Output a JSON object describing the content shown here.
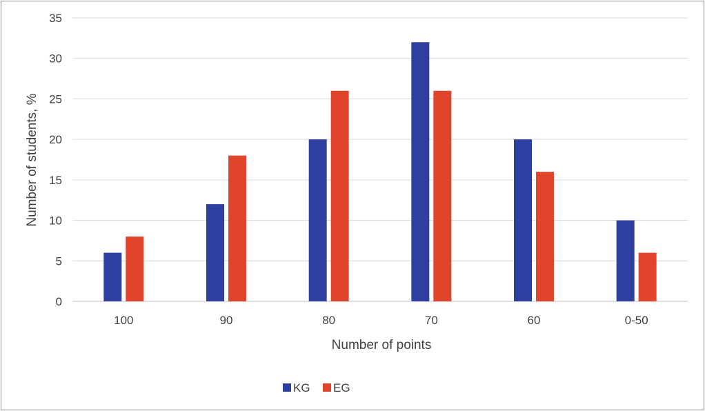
{
  "chart_data": {
    "type": "bar",
    "title": "",
    "xlabel": "Number of points",
    "ylabel": "Number of students, %",
    "categories": [
      "100",
      "90",
      "80",
      "70",
      "60",
      "0-50"
    ],
    "series": [
      {
        "name": "KG",
        "color": "#2e3fa0",
        "values": [
          6,
          12,
          20,
          32,
          20,
          10
        ]
      },
      {
        "name": "EG",
        "color": "#e0452c",
        "values": [
          8,
          18,
          26,
          26,
          16,
          6
        ]
      }
    ],
    "ylim": [
      0,
      35
    ],
    "yticks": [
      "0",
      "5",
      "10",
      "15",
      "20",
      "25",
      "30",
      "35"
    ],
    "ytick_values": [
      0,
      5,
      10,
      15,
      20,
      25,
      30,
      35
    ],
    "grid": true,
    "legend_position": "bottom-center"
  }
}
